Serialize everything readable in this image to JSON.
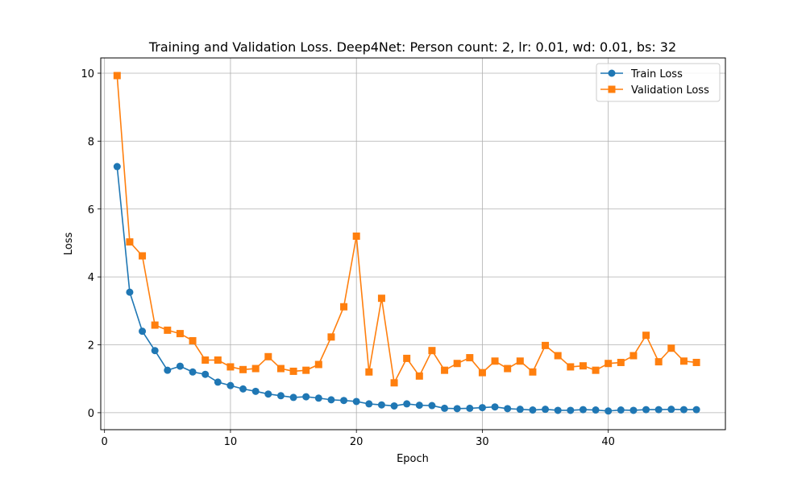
{
  "chart_data": {
    "type": "line",
    "title": "Training and Validation Loss. Deep4Net: Person count: 2, lr: 0.01, wd: 0.01, bs: 32",
    "xlabel": "Epoch",
    "ylabel": "Loss",
    "xlim": [
      -0.3,
      49.3
    ],
    "ylim": [
      -0.5,
      10.45
    ],
    "xticks": [
      0,
      10,
      20,
      30,
      40
    ],
    "yticks": [
      0,
      2,
      4,
      6,
      8,
      10
    ],
    "xtick_labels": [
      "0",
      "10",
      "20",
      "30",
      "40"
    ],
    "ytick_labels": [
      "0",
      "2",
      "4",
      "6",
      "8",
      "10"
    ],
    "grid": true,
    "legend_position": "top-right",
    "x": [
      1,
      2,
      3,
      4,
      5,
      6,
      7,
      8,
      9,
      10,
      11,
      12,
      13,
      14,
      15,
      16,
      17,
      18,
      19,
      20,
      21,
      22,
      23,
      24,
      25,
      26,
      27,
      28,
      29,
      30,
      31,
      32,
      33,
      34,
      35,
      36,
      37,
      38,
      39,
      40,
      41,
      42,
      43,
      44,
      45,
      46,
      47
    ],
    "series": [
      {
        "name": "Train Loss",
        "color": "#1f77b4",
        "marker": "circle",
        "values": [
          7.25,
          3.55,
          2.4,
          1.83,
          1.25,
          1.37,
          1.2,
          1.13,
          0.9,
          0.8,
          0.7,
          0.63,
          0.55,
          0.5,
          0.45,
          0.47,
          0.43,
          0.38,
          0.36,
          0.33,
          0.26,
          0.23,
          0.2,
          0.26,
          0.22,
          0.21,
          0.13,
          0.12,
          0.13,
          0.15,
          0.17,
          0.12,
          0.1,
          0.08,
          0.1,
          0.07,
          0.07,
          0.09,
          0.08,
          0.05,
          0.08,
          0.07,
          0.09,
          0.09,
          0.1,
          0.09,
          0.09
        ]
      },
      {
        "name": "Validation Loss",
        "color": "#ff7f0e",
        "marker": "square",
        "values": [
          9.93,
          5.03,
          4.62,
          2.58,
          2.43,
          2.33,
          2.12,
          1.55,
          1.55,
          1.35,
          1.27,
          1.3,
          1.65,
          1.3,
          1.22,
          1.25,
          1.42,
          2.23,
          3.12,
          5.2,
          1.2,
          3.37,
          0.88,
          1.6,
          1.08,
          1.83,
          1.25,
          1.45,
          1.62,
          1.18,
          1.52,
          1.3,
          1.52,
          1.2,
          1.98,
          1.68,
          1.35,
          1.38,
          1.25,
          1.45,
          1.48,
          1.68,
          2.28,
          1.5,
          1.9,
          1.52,
          1.48
        ]
      }
    ]
  }
}
